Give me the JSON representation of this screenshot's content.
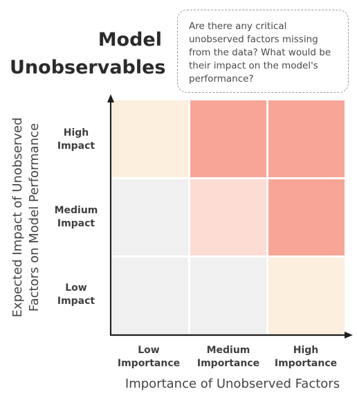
{
  "title": {
    "line1": "Model",
    "line2": "Unobservables"
  },
  "note": {
    "lines": [
      "Are there any critical",
      "unobserved factors missing",
      "from the data? What would be",
      "their impact on the model's",
      "performance?"
    ]
  },
  "y_axis": {
    "title_line1": "Expected Impact of Unobserved",
    "title_line2": "Factors on Model Performance",
    "levels": [
      {
        "line1": "High",
        "line2": "Impact"
      },
      {
        "line1": "Medium",
        "line2": "Impact"
      },
      {
        "line1": "Low",
        "line2": "Impact"
      }
    ]
  },
  "x_axis": {
    "title": "Importance of Unobserved Factors",
    "levels": [
      {
        "line1": "Low",
        "line2": "Importance"
      },
      {
        "line1": "Medium",
        "line2": "Importance"
      },
      {
        "line1": "High",
        "line2": "Importance"
      }
    ]
  },
  "grid": {
    "rows": [
      "High Impact",
      "Medium Impact",
      "Low Impact"
    ],
    "columns": [
      "Low Importance",
      "Medium Importance",
      "High Importance"
    ],
    "cell_colors": [
      [
        "#fdefdd",
        "#f8a597",
        "#f8a597"
      ],
      [
        "#f0f0f0",
        "#fcdcd3",
        "#f8a597"
      ],
      [
        "#f0f0f0",
        "#f0f0f0",
        "#fdefdd"
      ]
    ]
  }
}
